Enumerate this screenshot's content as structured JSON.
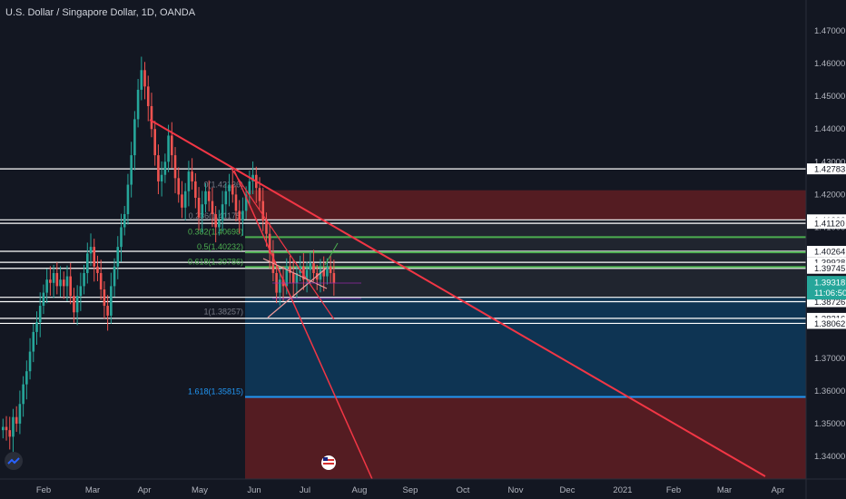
{
  "header": {
    "title": "U.S. Dollar / Singapore Dollar, 1D, OANDA"
  },
  "colors": {
    "background": "#131722",
    "up": "#26a69a",
    "down": "#ef5350",
    "trendline": "#f23645",
    "horizontal": "#ffffff",
    "fib_green": "#4caf50",
    "fib_blue": "#2196f3",
    "zone_red": "#6b1f23",
    "zone_blue": "#0e3a5c"
  },
  "icons": {
    "logo": "tradingview-logo-icon",
    "flag": "us-flag-icon"
  },
  "chart_data": {
    "type": "candlestick",
    "title": "U.S. Dollar / Singapore Dollar, 1D, OANDA",
    "xlabel": "",
    "ylabel": "",
    "ylim": [
      1.3325,
      1.4777
    ],
    "x_ticks": [
      "Feb",
      "Mar",
      "Apr",
      "May",
      "Jun",
      "Jul",
      "Aug",
      "Sep",
      "Oct",
      "Nov",
      "Dec",
      "2021",
      "Feb",
      "Mar",
      "Apr"
    ],
    "y_ticks": [
      "1.47000",
      "1.46000",
      "1.45000",
      "1.44000",
      "1.43000",
      "1.42000",
      "1.41000",
      "1.40000",
      "1.39000",
      "1.38000",
      "1.37000",
      "1.36000",
      "1.35000",
      "1.34000"
    ],
    "price_tags": [
      {
        "label": "1.42783",
        "value": 1.42783
      },
      {
        "label": "1.41226",
        "value": 1.41226
      },
      {
        "label": "1.41120",
        "value": 1.4112
      },
      {
        "label": "1.40264",
        "value": 1.40264
      },
      {
        "label": "1.39928",
        "value": 1.39928
      },
      {
        "label": "1.39745",
        "value": 1.39745
      },
      {
        "label": "1.38860",
        "value": 1.3886
      },
      {
        "label": "1.38726",
        "value": 1.38726
      },
      {
        "label": "1.38216",
        "value": 1.38216
      },
      {
        "label": "1.38062",
        "value": 1.38062
      }
    ],
    "last_price": {
      "label": "1.39318",
      "value": 1.39318,
      "countdown": "11:06:50"
    },
    "fib_levels": [
      {
        "label": "0(1.42136)",
        "value": 1.42136
      },
      {
        "label": "0.236(1.41175)",
        "value": 1.41175
      },
      {
        "label": "0.382(1.40698)",
        "value": 1.40698
      },
      {
        "label": "0.5(1.40232)",
        "value": 1.40232
      },
      {
        "label": "0.618(1.39786)",
        "value": 1.39786
      },
      {
        "label": "1(1.38257)",
        "value": 1.38257
      },
      {
        "label": "1.618(1.35815)",
        "value": 1.35815
      }
    ],
    "horizontal_levels": [
      1.42783,
      1.41226,
      1.4112,
      1.40264,
      1.39928,
      1.39745,
      1.3886,
      1.38726,
      1.38216,
      1.38062
    ],
    "series": [
      {
        "name": "USDSGD",
        "close": [
          1.349,
          1.348,
          1.346,
          1.352,
          1.35,
          1.356,
          1.362,
          1.366,
          1.372,
          1.378,
          1.381,
          1.386,
          1.39,
          1.394,
          1.393,
          1.396,
          1.392,
          1.394,
          1.392,
          1.395,
          1.389,
          1.384,
          1.389,
          1.392,
          1.396,
          1.402,
          1.404,
          1.398,
          1.396,
          1.391,
          1.386,
          1.383,
          1.392,
          1.398,
          1.404,
          1.41,
          1.414,
          1.423,
          1.432,
          1.443,
          1.452,
          1.458,
          1.453,
          1.447,
          1.44,
          1.432,
          1.424,
          1.426,
          1.43,
          1.438,
          1.432,
          1.425,
          1.42,
          1.416,
          1.421,
          1.427,
          1.424,
          1.419,
          1.413,
          1.417,
          1.421,
          1.418,
          1.414,
          1.41,
          1.412,
          1.417,
          1.421,
          1.423,
          1.42,
          1.415,
          1.412,
          1.415,
          1.42,
          1.424,
          1.426,
          1.422,
          1.418,
          1.412,
          1.408,
          1.402,
          1.396,
          1.39,
          1.394,
          1.392,
          1.398,
          1.396,
          1.393,
          1.396,
          1.398,
          1.394,
          1.397,
          1.399,
          1.396,
          1.394,
          1.397,
          1.395,
          1.398,
          1.396,
          1.393
        ]
      }
    ]
  }
}
